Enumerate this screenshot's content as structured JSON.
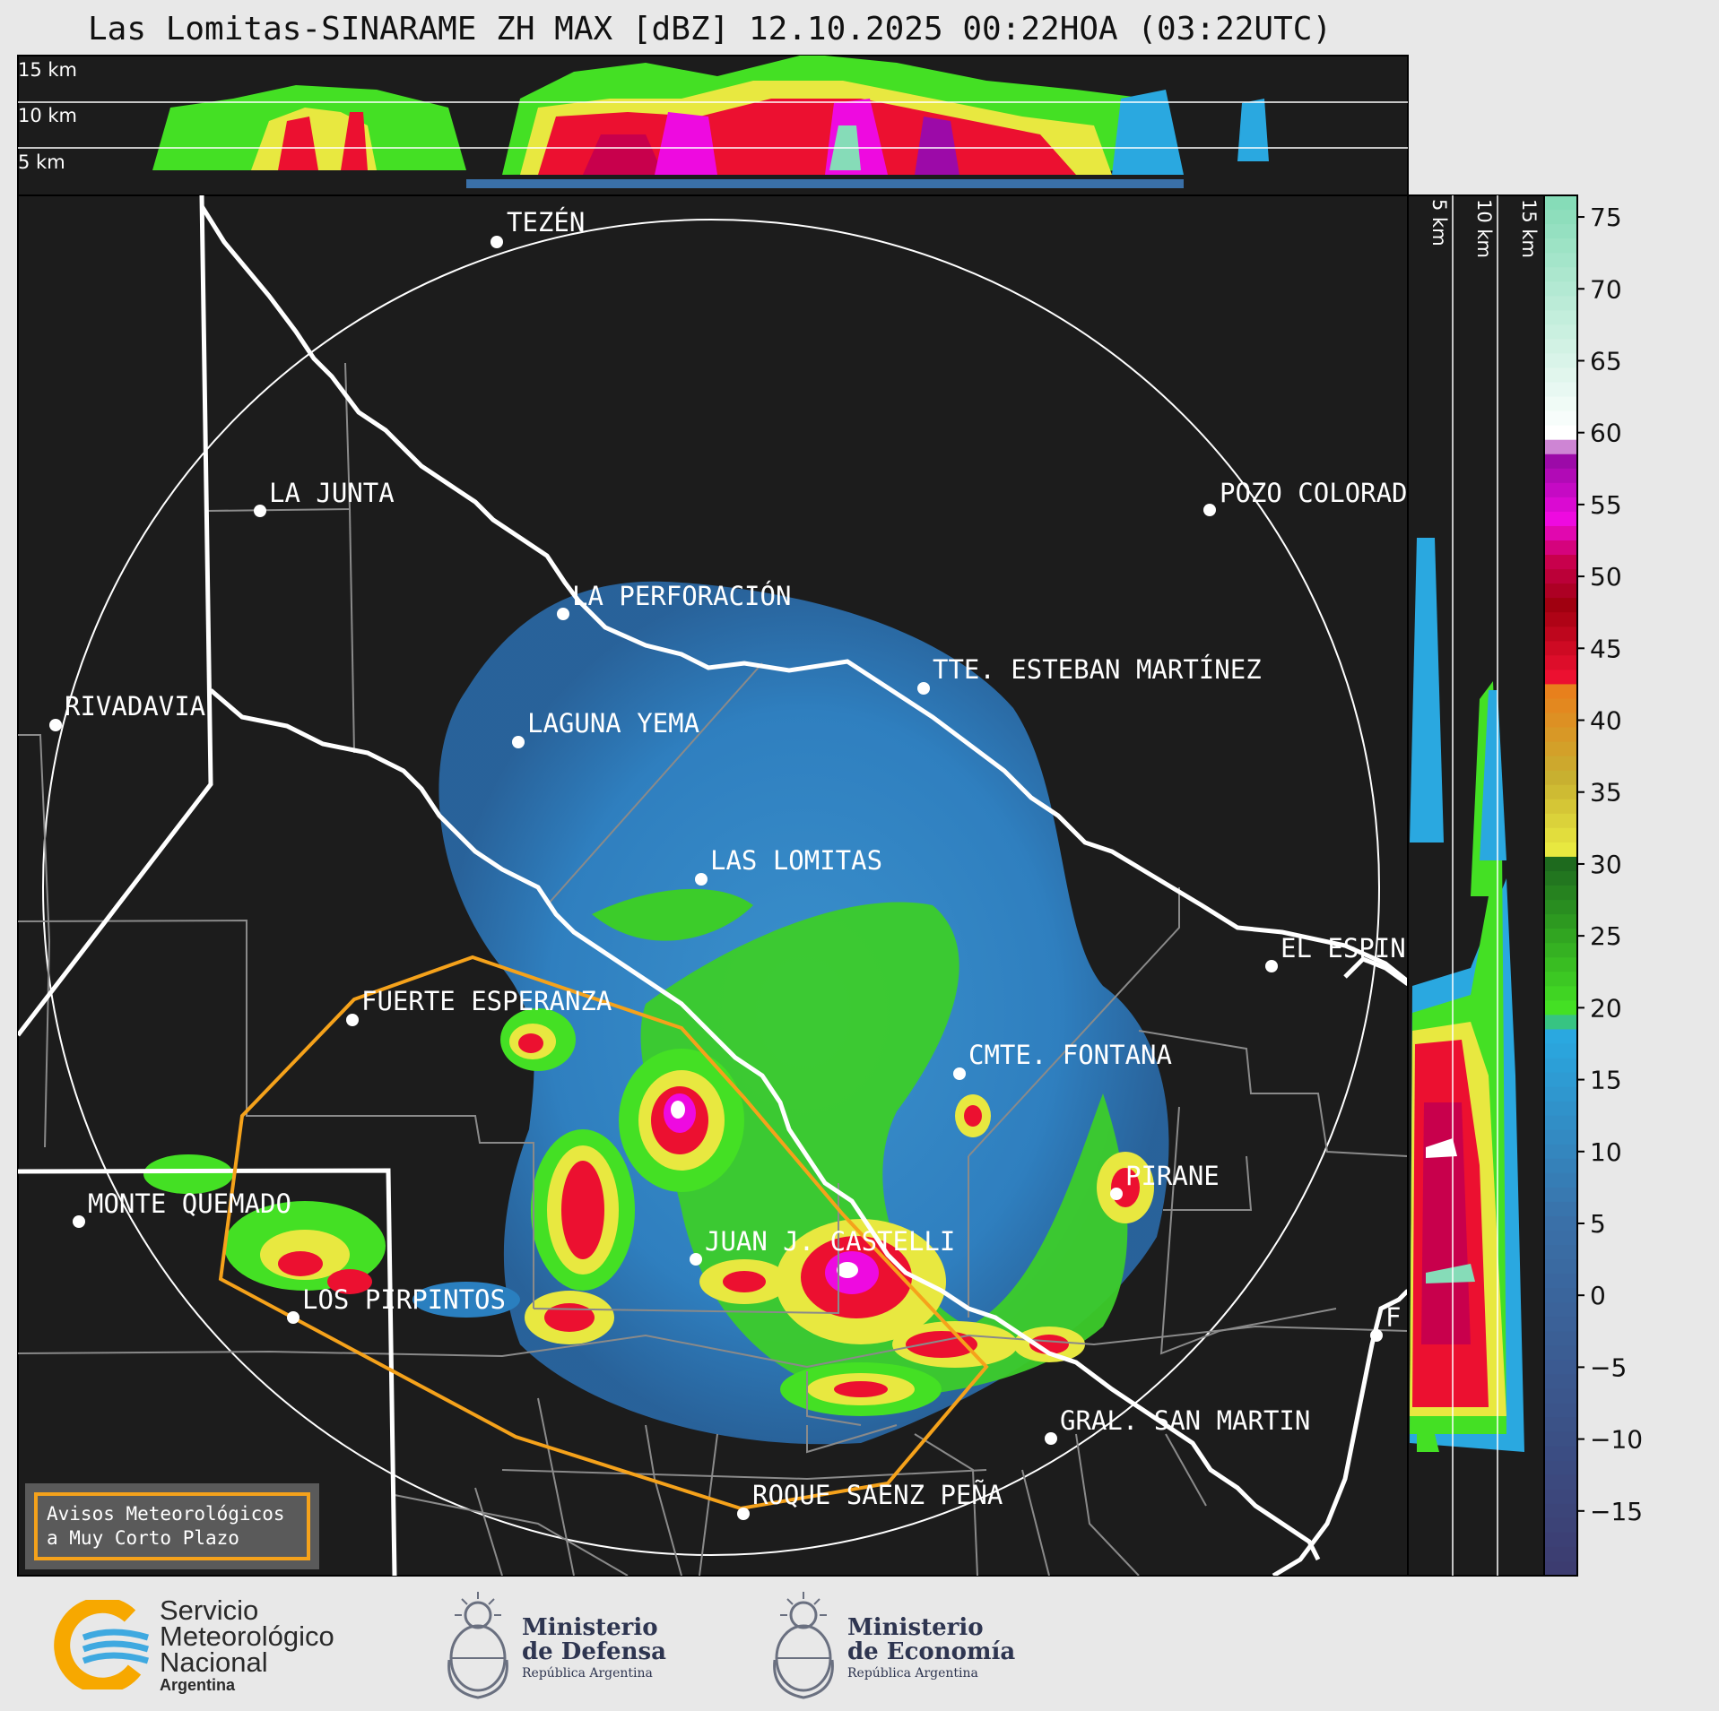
{
  "title": "Las Lomitas-SINARAME ZH MAX [dBZ] 12.10.2025 00:22HOA (03:22UTC)",
  "cross_section_top": {
    "km_labels": [
      "15 km",
      "10 km",
      "5 km"
    ]
  },
  "cross_section_right": {
    "km_labels": [
      "5 km",
      "10 km",
      "15 km"
    ]
  },
  "cities": [
    {
      "name": "TEZÉN"
    },
    {
      "name": "LA JUNTA"
    },
    {
      "name": "POZO COLORAD"
    },
    {
      "name": "LA PERFORACIÓN"
    },
    {
      "name": "TTE. ESTEBAN MARTÍNEZ"
    },
    {
      "name": "RIVADAVIA"
    },
    {
      "name": "LAGUNA YEMA"
    },
    {
      "name": "LAS LOMITAS"
    },
    {
      "name": "EL ESPIN"
    },
    {
      "name": "FUERTE ESPERANZA"
    },
    {
      "name": "CMTE. FONTANA"
    },
    {
      "name": "PIRANE"
    },
    {
      "name": "MONTE QUEMADO"
    },
    {
      "name": "JUAN J. CASTELLI"
    },
    {
      "name": "LOS PIRPINTOS"
    },
    {
      "name": "F"
    },
    {
      "name": "GRAL. SAN MARTIN"
    },
    {
      "name": "ROQUE SAENZ PEÑA"
    }
  ],
  "colorbar": {
    "unit": "dBZ",
    "ticks": [
      "75",
      "70",
      "65",
      "60",
      "55",
      "50",
      "45",
      "40",
      "35",
      "30",
      "25",
      "20",
      "15",
      "10",
      "5",
      "0",
      "−5",
      "−10",
      "−15"
    ],
    "stops": [
      {
        "dbz": 76,
        "color": "#86dcb8"
      },
      {
        "dbz": 60,
        "color": "#ffffff"
      },
      {
        "dbz": 58,
        "color": "#9c0aa8"
      },
      {
        "dbz": 54,
        "color": "#ee0ae0"
      },
      {
        "dbz": 51,
        "color": "#c8004c"
      },
      {
        "dbz": 48,
        "color": "#a00010"
      },
      {
        "dbz": 43,
        "color": "#ec1030"
      },
      {
        "dbz": 42,
        "color": "#e8801c"
      },
      {
        "dbz": 36,
        "color": "#c8b030"
      },
      {
        "dbz": 31,
        "color": "#e8e840"
      },
      {
        "dbz": 30,
        "color": "#1e6a1e"
      },
      {
        "dbz": 20,
        "color": "#44e024"
      },
      {
        "dbz": 18,
        "color": "#2aa8e0"
      },
      {
        "dbz": 5,
        "color": "#3a70a8"
      },
      {
        "dbz": -19,
        "color": "#3c3c70"
      }
    ]
  },
  "warning_box": {
    "text": "Avisos Meteorológicos\na Muy Corto Plazo"
  },
  "logos": {
    "smn": {
      "line1": "Servicio",
      "line2": "Meteorológico",
      "line3": "Nacional",
      "line4": "Argentina"
    },
    "defensa": {
      "line1": "Ministerio",
      "line2": "de Defensa",
      "line3": "República Argentina"
    },
    "economia": {
      "line1": "Ministerio",
      "line2": "de Economía",
      "line3": "República Argentina"
    }
  },
  "colors": {
    "map_background": "#1c1c1c",
    "warning_polygon": "#f5a21b",
    "border_major": "#ffffff",
    "border_minor": "#8a8a8a"
  }
}
